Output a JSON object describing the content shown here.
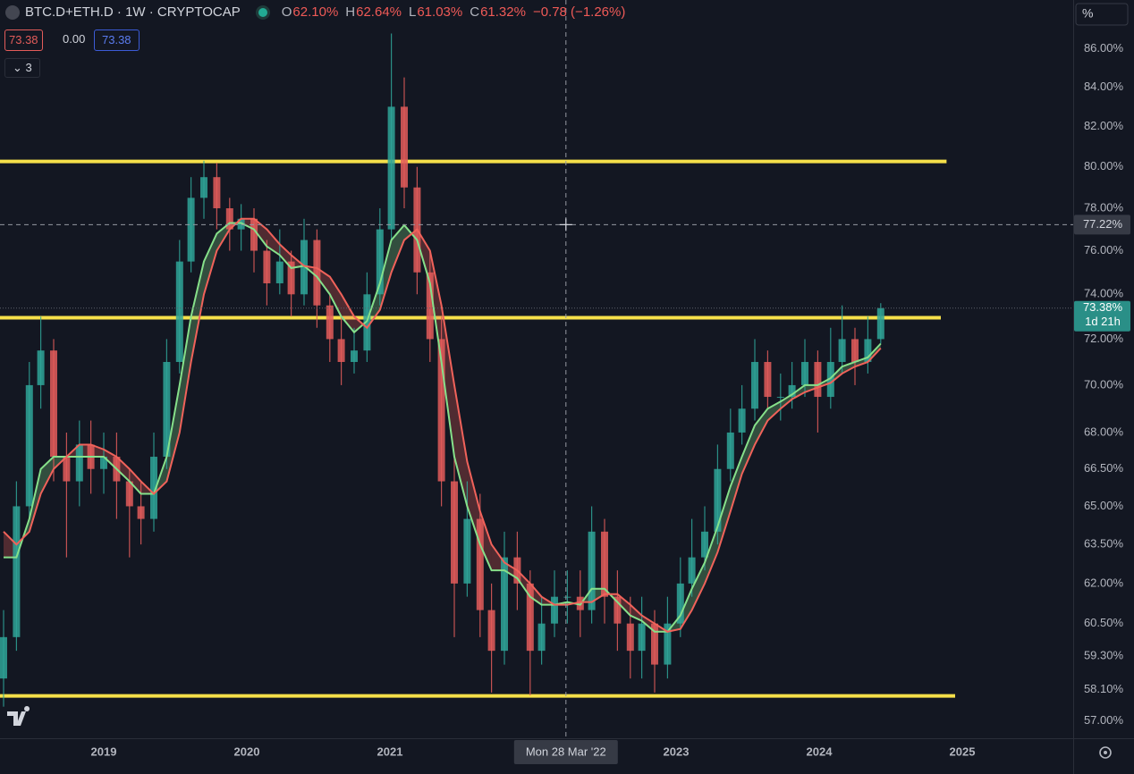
{
  "header": {
    "symbol": "BTC.D+ETH.D · 1W · CRYPTOCAP",
    "ohlc": [
      {
        "key": "O",
        "value": "62.10%"
      },
      {
        "key": "H",
        "value": "62.64%"
      },
      {
        "key": "L",
        "value": "61.03%"
      },
      {
        "key": "C",
        "value": "61.32%"
      }
    ],
    "change": "−0.78 (−1.26%)",
    "indicator_values": [
      "73.38",
      "0.00",
      "73.38"
    ],
    "collapsed_count": "3",
    "scale_mode": "%"
  },
  "chart_data": {
    "type": "candlestick",
    "log_scale": true,
    "grid": false,
    "up_color": "#2fa598",
    "down_color": "#e35c5a",
    "x": [
      2018.3,
      2018.39,
      2018.48,
      2018.56,
      2018.65,
      2018.74,
      2018.83,
      2018.91,
      2019.0,
      2019.09,
      2019.18,
      2019.26,
      2019.35,
      2019.44,
      2019.53,
      2019.61,
      2019.7,
      2019.79,
      2019.88,
      2019.96,
      2020.05,
      2020.14,
      2020.23,
      2020.31,
      2020.4,
      2020.49,
      2020.58,
      2020.66,
      2020.75,
      2020.84,
      2020.93,
      2021.01,
      2021.1,
      2021.19,
      2021.28,
      2021.36,
      2021.45,
      2021.54,
      2021.63,
      2021.71,
      2021.8,
      2021.89,
      2021.98,
      2022.06,
      2022.15,
      2022.24,
      2022.33,
      2022.41,
      2022.5,
      2022.59,
      2022.68,
      2022.76,
      2022.85,
      2022.94,
      2023.03,
      2023.11,
      2023.2,
      2023.29,
      2023.38,
      2023.46,
      2023.55,
      2023.64,
      2023.73,
      2023.81,
      2023.9,
      2023.99,
      2024.08,
      2024.16,
      2024.25,
      2024.34,
      2024.43
    ],
    "open": [
      58.5,
      60,
      65,
      70,
      71.5,
      67,
      66,
      67.5,
      66.5,
      67,
      66,
      65,
      64.5,
      67,
      71,
      75.5,
      78.5,
      79.5,
      78,
      77,
      77.5,
      76,
      74.5,
      75.5,
      74,
      76.5,
      73.5,
      72,
      71,
      71.5,
      74,
      77,
      83,
      79,
      75,
      72,
      66,
      62,
      64.5,
      61,
      59.5,
      63,
      62,
      59.5,
      60.5,
      61.5,
      61.5,
      61,
      64,
      61.5,
      60.5,
      59.5,
      60.5,
      59,
      60.5,
      62,
      63,
      64,
      66.5,
      68,
      69,
      71,
      69.5,
      69.5,
      70,
      71,
      69.5,
      71,
      72,
      71,
      72
    ],
    "high": [
      61,
      66,
      71,
      73,
      72,
      68,
      68.5,
      68.5,
      68,
      68,
      66.5,
      66,
      68,
      72,
      76.5,
      79.5,
      80.3,
      80.2,
      78.5,
      78.2,
      78,
      76.5,
      77,
      76,
      77.5,
      77,
      74,
      73,
      72.5,
      75,
      78,
      86.8,
      84.5,
      80,
      76,
      73,
      67,
      66,
      65.5,
      62,
      64,
      64,
      62.5,
      61.5,
      62.5,
      62.5,
      62.5,
      65,
      64.5,
      62.5,
      61.5,
      61.5,
      61,
      61.5,
      63,
      64.5,
      65,
      67.5,
      69,
      70,
      72,
      71.5,
      70.5,
      71,
      72,
      71.5,
      72.5,
      73.5,
      72.5,
      73,
      73.6
    ],
    "low": [
      57.5,
      59.5,
      64.5,
      69,
      66,
      63,
      65,
      65.5,
      65.5,
      64.5,
      63,
      63.5,
      64,
      66.5,
      70.5,
      75,
      77.5,
      77,
      76,
      76,
      75,
      73.5,
      74,
      73,
      73.5,
      72.5,
      71,
      70,
      70.5,
      71,
      73.5,
      76.5,
      78,
      74,
      71,
      65,
      60,
      61.5,
      60,
      58,
      59,
      61,
      57.9,
      59,
      60,
      60.5,
      60,
      60.5,
      60.5,
      59.5,
      58.5,
      58.5,
      58,
      58.5,
      60,
      61.5,
      62.5,
      63.5,
      66,
      67.5,
      68.5,
      69,
      68.5,
      69,
      69.5,
      68,
      69,
      70.5,
      70,
      70.5,
      71.8
    ],
    "close": [
      60,
      65,
      70,
      71.5,
      67,
      66,
      67.5,
      66.5,
      67,
      66,
      65,
      64.5,
      67,
      71,
      75.5,
      78.5,
      79.5,
      78,
      77,
      77.5,
      76,
      74.5,
      75.5,
      74,
      76.5,
      73.5,
      72,
      71,
      71.5,
      74,
      77,
      83,
      79,
      75,
      72,
      66,
      62,
      64.5,
      61,
      59.5,
      63,
      62,
      59.5,
      60.5,
      61.5,
      61.5,
      61,
      64,
      61.5,
      60.5,
      59.5,
      60.5,
      59,
      60.5,
      62,
      63,
      64,
      66.5,
      68,
      69,
      71,
      69.5,
      69.5,
      70,
      71,
      69.5,
      71,
      72,
      71,
      72,
      73.38
    ],
    "series": [
      {
        "color": "#86e08a",
        "values": [
          63,
          63,
          64.5,
          66.5,
          67,
          67,
          67,
          67,
          67,
          66.5,
          66,
          65.5,
          65.5,
          67,
          70,
          73,
          75.5,
          76.8,
          77.3,
          77.3,
          77,
          76.2,
          75.8,
          75.2,
          75.3,
          74.8,
          74,
          73,
          72.3,
          72.8,
          74.5,
          76.5,
          77.2,
          76.5,
          74.5,
          71,
          67,
          65,
          63.5,
          62.5,
          62.5,
          62.2,
          61.5,
          61.2,
          61.2,
          61.3,
          61.2,
          61.8,
          61.8,
          61.3,
          60.8,
          60.6,
          60.2,
          60.2,
          60.8,
          61.8,
          62.8,
          64.2,
          65.8,
          67,
          68.3,
          69,
          69.3,
          69.6,
          70,
          70,
          70.3,
          70.8,
          71,
          71.2,
          71.8
        ]
      },
      {
        "color": "#f0625a",
        "values": [
          64,
          63.5,
          64,
          65.5,
          66.5,
          67,
          67.5,
          67.5,
          67.3,
          67,
          66.5,
          66,
          65.5,
          66,
          68,
          71,
          74,
          76,
          77,
          77.5,
          77.5,
          77,
          76.3,
          75.8,
          75.3,
          75.2,
          74.8,
          74,
          73,
          72.5,
          73.3,
          75,
          76.5,
          77,
          76,
          73.5,
          70,
          66.8,
          64.8,
          63.5,
          62.8,
          62.5,
          62,
          61.5,
          61.2,
          61.2,
          61.3,
          61.3,
          61.6,
          61.6,
          61.2,
          60.8,
          60.5,
          60.2,
          60.3,
          61,
          62,
          63.2,
          64.8,
          66.3,
          67.5,
          68.5,
          69,
          69.4,
          69.7,
          69.9,
          70.1,
          70.5,
          70.8,
          71,
          71.6
        ]
      }
    ],
    "hlines": [
      {
        "y": 80.27,
        "x": [
          2018.275,
          2024.89
        ],
        "color": "#f5e04a"
      },
      {
        "y": 72.95,
        "x": [
          2018.275,
          2024.85
        ],
        "color": "#f5e04a"
      },
      {
        "y": 57.88,
        "x": [
          2018.275,
          2024.95
        ],
        "color": "#f5e04a"
      }
    ],
    "last_price": {
      "value": 73.38,
      "label": "73.38%",
      "countdown": "1d 21h"
    },
    "crosshair": {
      "x": 2022.23,
      "x_label": "Mon 28 Mar '22",
      "y": 77.22,
      "y_label": "77.22%"
    },
    "xlim": [
      2018.275,
      2025.775
    ],
    "xticks": [
      2019,
      2020,
      2021,
      2023,
      2024,
      2025
    ],
    "ylim": [
      56.4,
      88.6
    ],
    "yticks": [
      {
        "value": 86,
        "label": "86.00%"
      },
      {
        "value": 84,
        "label": "84.00%"
      },
      {
        "value": 82,
        "label": "82.00%"
      },
      {
        "value": 80,
        "label": "80.00%"
      },
      {
        "value": 78,
        "label": "78.00%"
      },
      {
        "value": 76,
        "label": "76.00%"
      },
      {
        "value": 74,
        "label": "74.00%"
      },
      {
        "value": 72,
        "label": "72.00%"
      },
      {
        "value": 70,
        "label": "70.00%"
      },
      {
        "value": 68,
        "label": "68.00%"
      },
      {
        "value": 66.5,
        "label": "66.50%"
      },
      {
        "value": 65,
        "label": "65.00%"
      },
      {
        "value": 63.5,
        "label": "63.50%"
      },
      {
        "value": 62,
        "label": "62.00%"
      },
      {
        "value": 60.5,
        "label": "60.50%"
      },
      {
        "value": 59.3,
        "label": "59.30%"
      },
      {
        "value": 58.1,
        "label": "58.10%"
      },
      {
        "value": 57,
        "label": "57.00%"
      }
    ]
  }
}
